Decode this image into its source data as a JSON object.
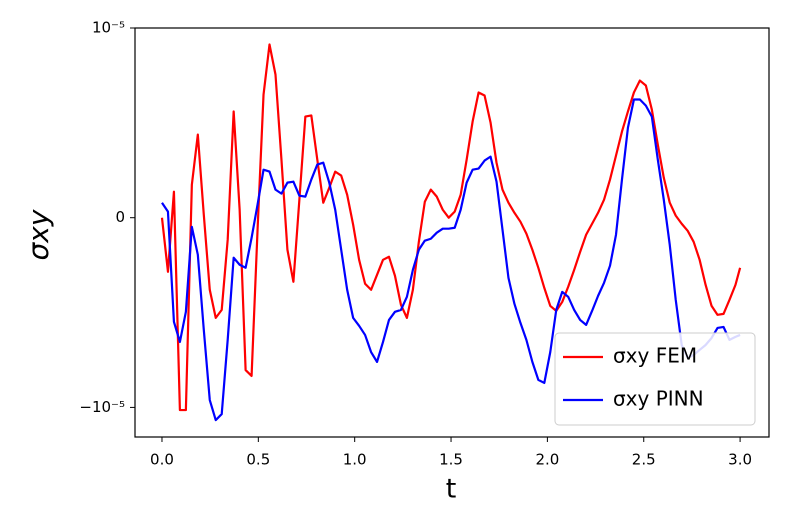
{
  "chart_data": {
    "type": "line",
    "xlabel": "t",
    "ylabel": "σxy",
    "x": [
      0,
      0.031,
      0.062,
      0.093,
      0.124,
      0.155,
      0.186,
      0.217,
      0.248,
      0.279,
      0.31,
      0.341,
      0.372,
      0.403,
      0.434,
      0.465,
      0.496,
      0.527,
      0.558,
      0.589,
      0.62,
      0.651,
      0.682,
      0.713,
      0.744,
      0.775,
      0.806,
      0.837,
      0.868,
      0.899,
      0.93,
      0.961,
      0.992,
      1.023,
      1.054,
      1.085,
      1.116,
      1.147,
      1.178,
      1.209,
      1.24,
      1.271,
      1.302,
      1.333,
      1.364,
      1.395,
      1.426,
      1.457,
      1.488,
      1.519,
      1.55,
      1.581,
      1.612,
      1.643,
      1.674,
      1.705,
      1.736,
      1.767,
      1.798,
      1.829,
      1.86,
      1.891,
      1.922,
      1.953,
      1.984,
      2.015,
      2.046,
      2.077,
      2.108,
      2.139,
      2.17,
      2.201,
      2.232,
      2.263,
      2.294,
      2.325,
      2.356,
      2.387,
      2.418,
      2.449,
      2.48,
      2.511,
      2.542,
      2.573,
      2.604,
      2.635,
      2.666,
      2.697,
      2.728,
      2.759,
      2.79,
      2.821,
      2.852,
      2.883,
      2.914,
      2.945,
      2.976,
      3.0
    ],
    "series": [
      {
        "name": "σxy FEM",
        "color": "#ff0000",
        "values": [
          0,
          -2.85e-06,
          1.37e-06,
          -1.014e-05,
          -1.014e-05,
          1.74e-06,
          4.38e-06,
          1.6e-07,
          -3.8e-06,
          -5.28e-06,
          -4.86e-06,
          -1.16e-06,
          5.6e-06,
          4.2e-07,
          -8.03e-06,
          -8.34e-06,
          -6.3e-07,
          6.49e-06,
          9.13e-06,
          7.55e-06,
          3.06e-06,
          -1.69e-06,
          -3.38e-06,
          9.5e-07,
          5.33e-06,
          5.39e-06,
          3.06e-06,
          7.9e-07,
          1.58e-06,
          2.43e-06,
          2.22e-06,
          1.21e-06,
          -3.7e-07,
          -2.22e-06,
          -3.48e-06,
          -3.8e-06,
          -3.01e-06,
          -2.22e-06,
          -2.06e-06,
          -3.06e-06,
          -4.59e-06,
          -5.28e-06,
          -3.8e-06,
          -1.27e-06,
          8.4e-07,
          1.48e-06,
          1.11e-06,
          4.2e-07,
          0,
          3.2e-07,
          1.21e-06,
          3.06e-06,
          5.07e-06,
          6.6e-06,
          6.44e-06,
          5.02e-06,
          2.9e-06,
          1.48e-06,
          7.9e-07,
          2.6e-07,
          -2.1e-07,
          -8.4e-07,
          -1.69e-06,
          -2.64e-06,
          -3.7e-06,
          -4.65e-06,
          -4.91e-06,
          -4.44e-06,
          -3.64e-06,
          -2.75e-06,
          -1.8e-06,
          -9e-07,
          -3.2e-07,
          2.6e-07,
          9.5e-07,
          2.01e-06,
          3.27e-06,
          4.54e-06,
          5.6e-06,
          6.6e-06,
          7.23e-06,
          6.97e-06,
          5.7e-06,
          3.85e-06,
          2.11e-06,
          7.9e-07,
          1.1e-07,
          -3.2e-07,
          -6.9e-07,
          -1.27e-06,
          -2.22e-06,
          -3.54e-06,
          -4.65e-06,
          -5.12e-06,
          -5.07e-06,
          -4.33e-06,
          -3.54e-06,
          -2.64e-06
        ]
      },
      {
        "name": "σxy PINN",
        "color": "#0000ff",
        "values": [
          7.9e-07,
          3.2e-07,
          -5.49e-06,
          -6.55e-06,
          -4.96e-06,
          -4.8e-07,
          -1.95e-06,
          -5.91e-06,
          -9.61e-06,
          -1.067e-05,
          -1.035e-05,
          -6.44e-06,
          -2.11e-06,
          -2.48e-06,
          -2.64e-06,
          -1.06e-06,
          6.9e-07,
          2.53e-06,
          2.43e-06,
          1.48e-06,
          1.27e-06,
          1.85e-06,
          1.9e-06,
          1.16e-06,
          1.11e-06,
          2.01e-06,
          2.8e-06,
          2.9e-06,
          1.85e-06,
          4.2e-07,
          -1.69e-06,
          -3.8e-06,
          -5.28e-06,
          -5.7e-06,
          -6.18e-06,
          -7.08e-06,
          -7.6e-06,
          -6.55e-06,
          -5.39e-06,
          -4.96e-06,
          -4.86e-06,
          -4.17e-06,
          -2.75e-06,
          -1.69e-06,
          -1.21e-06,
          -1.11e-06,
          -7.9e-07,
          -5.8e-07,
          -5.8e-07,
          -5.3e-07,
          4.2e-07,
          1.85e-06,
          2.53e-06,
          2.59e-06,
          3.01e-06,
          3.22e-06,
          1.9e-06,
          -6.3e-07,
          -3.17e-06,
          -4.54e-06,
          -5.54e-06,
          -6.44e-06,
          -7.6e-06,
          -8.55e-06,
          -8.71e-06,
          -7.08e-06,
          -4.86e-06,
          -3.91e-06,
          -4.17e-06,
          -4.86e-06,
          -5.39e-06,
          -5.65e-06,
          -4.91e-06,
          -4.12e-06,
          -3.43e-06,
          -2.53e-06,
          -9e-07,
          2.01e-06,
          4.75e-06,
          6.23e-06,
          6.23e-06,
          5.91e-06,
          5.33e-06,
          3.06e-06,
          9.5e-07,
          -1.43e-06,
          -4.33e-06,
          -6.71e-06,
          -7.39e-06,
          -7.23e-06,
          -6.97e-06,
          -6.71e-06,
          -6.34e-06,
          -5.81e-06,
          -5.76e-06,
          -6.44e-06,
          -6.28e-06,
          -6.18e-06
        ]
      }
    ],
    "xlim": [
      -0.14,
      3.15
    ],
    "ylim": [
      -1.156e-05,
      1e-05
    ],
    "xticks": [
      {
        "value": 0,
        "label": "0.0"
      },
      {
        "value": 0.5,
        "label": "0.5"
      },
      {
        "value": 1,
        "label": "1.0"
      },
      {
        "value": 1.5,
        "label": "1.5"
      },
      {
        "value": 2,
        "label": "2.0"
      },
      {
        "value": 2.5,
        "label": "2.5"
      },
      {
        "value": 3,
        "label": "3.0"
      }
    ],
    "yticks": [
      {
        "value": -1e-05,
        "label": "−10⁻⁵"
      },
      0,
      {
        "value": 1e-05,
        "label": "10⁻⁵"
      }
    ],
    "legend": "lower right",
    "grid": false
  }
}
